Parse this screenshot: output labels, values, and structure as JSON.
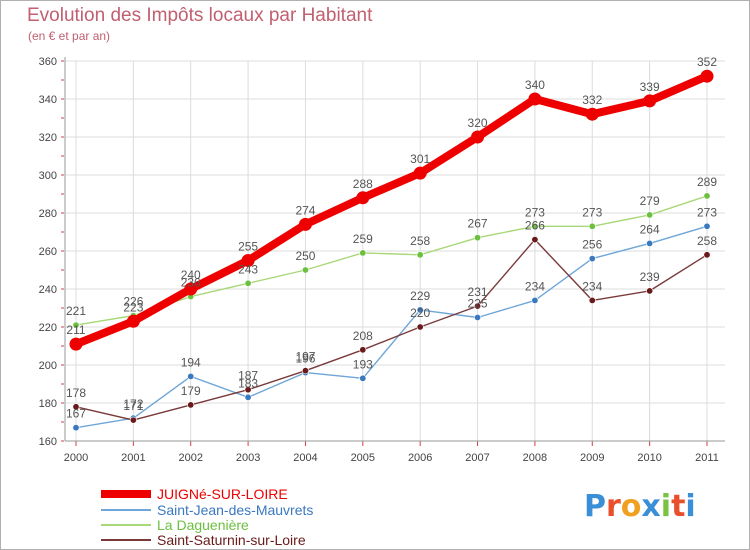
{
  "header": {
    "title": "Evolution des Impôts locaux par Habitant",
    "subtitle": "(en € et par an)"
  },
  "logo": {
    "text": "Proxiti",
    "letters": [
      "P",
      "r",
      "o",
      "x",
      "i",
      "t",
      "i"
    ],
    "letter_colors": [
      "#3b8fd6",
      "#e84f2a",
      "#f0a020",
      "#3b8fd6",
      "#7cc242",
      "#e84f2a",
      "#3b8fd6"
    ]
  },
  "chart_data": {
    "type": "line",
    "title": "Evolution des Impôts locaux par Habitant",
    "subtitle": "(en € et par an)",
    "xlabel": "",
    "ylabel": "",
    "x": [
      "2000",
      "2001",
      "2002",
      "2003",
      "2004",
      "2005",
      "2006",
      "2007",
      "2008",
      "2009",
      "2010",
      "2011"
    ],
    "ylim": [
      160,
      360
    ],
    "yticks": [
      "160",
      "180",
      "200",
      "220",
      "240",
      "260",
      "280",
      "300",
      "320",
      "340",
      "360"
    ],
    "grid": true,
    "legend_position": "bottom-left",
    "series": [
      {
        "name": "JUIGNé-SUR-LOIRE",
        "color": "#ee0000",
        "marker_color": "#ee0000",
        "emphasis": "bold",
        "values": [
          211,
          223,
          240,
          255,
          274,
          288,
          301,
          320,
          340,
          332,
          339,
          352
        ],
        "labels": [
          "211",
          "223",
          "240",
          "255",
          "274",
          "288",
          "301",
          "320",
          "340",
          "332",
          "339",
          "352"
        ]
      },
      {
        "name": "Saint-Jean-des-Mauvrets",
        "color": "#6ea6d8",
        "marker_color": "#3a78c0",
        "emphasis": "normal",
        "values": [
          167,
          172,
          194,
          183,
          196,
          193,
          229,
          225,
          234,
          256,
          264,
          273
        ],
        "labels": [
          "167",
          "172",
          "194",
          "183",
          "196",
          "193",
          "229",
          "225",
          "234",
          "256",
          "264",
          "273"
        ]
      },
      {
        "name": "La Daguenière",
        "color": "#a8d878",
        "marker_color": "#6cc040",
        "emphasis": "normal",
        "values": [
          221,
          226,
          236,
          243,
          250,
          259,
          258,
          267,
          273,
          273,
          279,
          289
        ],
        "labels": [
          "221",
          "226",
          "236",
          "243",
          "250",
          "259",
          "258",
          "267",
          "273",
          "273",
          "279",
          "289"
        ]
      },
      {
        "name": "Saint-Saturnin-sur-Loire",
        "color": "#7a3a3a",
        "marker_color": "#6a1a1a",
        "emphasis": "normal",
        "values": [
          178,
          171,
          179,
          187,
          197,
          208,
          220,
          231,
          266,
          234,
          239,
          258
        ],
        "labels": [
          "178",
          "171",
          "179",
          "187",
          "197",
          "208",
          "220",
          "231",
          "266",
          "234",
          "239",
          "258"
        ]
      }
    ]
  }
}
